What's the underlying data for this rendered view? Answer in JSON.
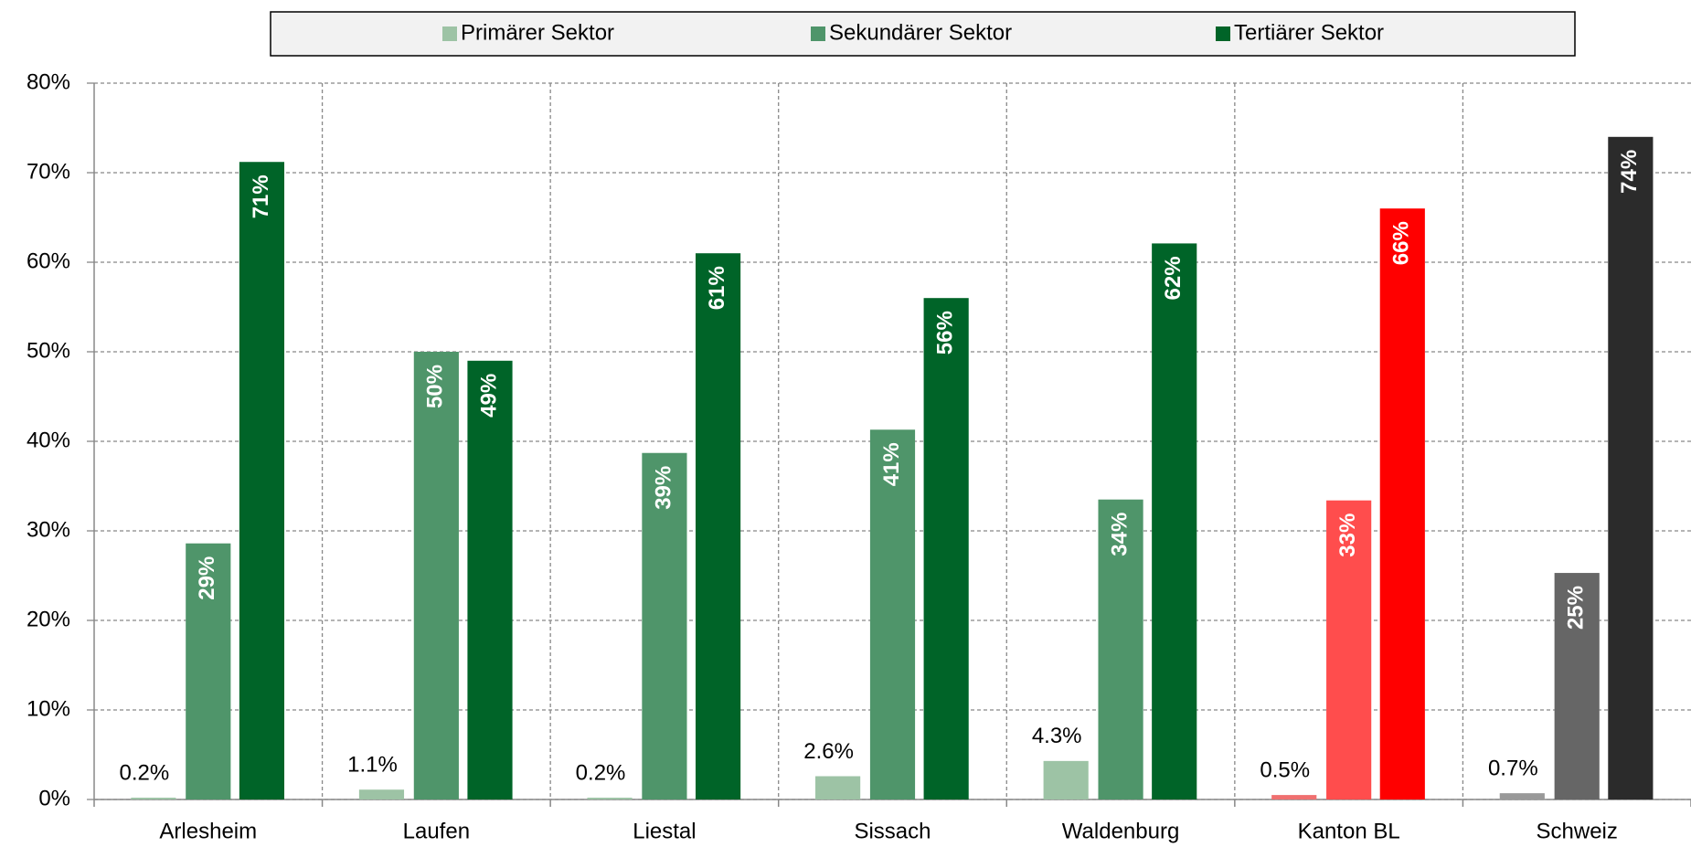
{
  "chart_data": {
    "type": "bar",
    "categories": [
      "Arlesheim",
      "Laufen",
      "Liestal",
      "Sissach",
      "Waldenburg",
      "Kanton BL",
      "Schweiz"
    ],
    "series": [
      {
        "name": "Primärer Sektor",
        "color": "#9dc3a5",
        "colors": [
          "#9dc3a5",
          "#9dc3a5",
          "#9dc3a5",
          "#9dc3a5",
          "#9dc3a5",
          "#f07070",
          "#999999"
        ],
        "values": [
          0.2,
          1.1,
          0.2,
          2.6,
          4.3,
          0.5,
          0.7
        ],
        "value_labels": [
          "0.2%",
          "1.1%",
          "0.2%",
          "2.6%",
          "4.3%",
          "0.5%",
          "0.7%"
        ]
      },
      {
        "name": "Sekundärer Sektor",
        "color": "#4f956a",
        "colors": [
          "#4f956a",
          "#4f956a",
          "#4f956a",
          "#4f956a",
          "#4f956a",
          "#ff4d4d",
          "#666666"
        ],
        "values": [
          28.6,
          50,
          38.7,
          41.3,
          33.5,
          33.4,
          25.3
        ],
        "value_labels": [
          "29%",
          "50%",
          "39%",
          "41%",
          "34%",
          "33%",
          "25%"
        ]
      },
      {
        "name": "Tertiärer Sektor",
        "color": "#006428",
        "colors": [
          "#006428",
          "#006428",
          "#006428",
          "#006428",
          "#006428",
          "#ff0000",
          "#2b2b2b"
        ],
        "values": [
          71.2,
          49,
          61,
          56,
          62.1,
          66,
          74
        ],
        "value_labels": [
          "71%",
          "49%",
          "61%",
          "56%",
          "62%",
          "66%",
          "74%"
        ]
      }
    ],
    "ylim": [
      0,
      80
    ],
    "yticks": [
      {
        "value": 0,
        "label": "0%"
      },
      {
        "value": 10,
        "label": "10%"
      },
      {
        "value": 20,
        "label": "20%"
      },
      {
        "value": 30,
        "label": "30%"
      },
      {
        "value": 40,
        "label": "40%"
      },
      {
        "value": 50,
        "label": "50%"
      },
      {
        "value": 60,
        "label": "60%"
      },
      {
        "value": 70,
        "label": "70%"
      },
      {
        "value": 80,
        "label": "80%"
      }
    ],
    "grid": true,
    "legend": "top"
  }
}
